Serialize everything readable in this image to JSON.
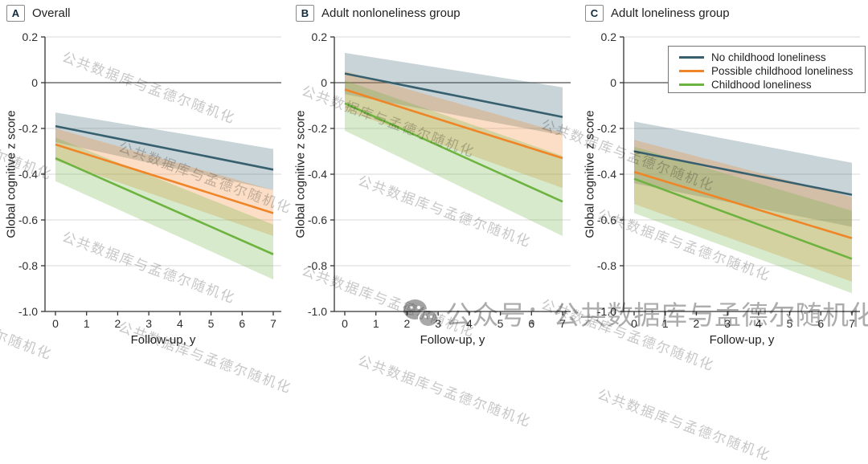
{
  "figure": {
    "watermark_tile_text": "公共数据库与孟德尔随机化",
    "bottom_watermark_text": "公众号：公共数据库与孟德尔随机化"
  },
  "colors": {
    "axis": "#333333",
    "zero_line": "#4f4f4f",
    "grid": "#d9d9d9",
    "band_opacity": 0.27,
    "no_childhood_loneliness": "#37606E",
    "possible_childhood_loneliness": "#EF8527",
    "childhood_loneliness": "#6DB33F",
    "watermark": "#c7c7c7"
  },
  "legend": {
    "items": [
      {
        "label": "No childhood loneliness",
        "color": "#37606E"
      },
      {
        "label": "Possible childhood loneliness",
        "color": "#EF8527"
      },
      {
        "label": "Childhood loneliness",
        "color": "#6DB33F"
      }
    ]
  },
  "axes": {
    "ylabel": "Global cognitive z score",
    "xlabel": "Follow-up, y",
    "yticks": [
      "0.2",
      "0",
      "-0.2",
      "-0.4",
      "-0.6",
      "-0.8",
      "-1.0"
    ],
    "ytick_values": [
      0.2,
      0,
      -0.2,
      -0.4,
      -0.6,
      -0.8,
      -1.0
    ],
    "xticks": [
      0,
      1,
      2,
      3,
      4,
      5,
      6,
      7
    ],
    "ylim": [
      -1.0,
      0.2
    ],
    "xlim": [
      0,
      7
    ],
    "grid": true,
    "legend_position": "top-right-panel-C"
  },
  "chart_data": [
    {
      "panel_label": "A",
      "title": "Overall",
      "type": "line",
      "x": [
        0,
        7
      ],
      "xlabel": "Follow-up, y",
      "ylabel": "Global cognitive z score",
      "ylim": [
        -1.0,
        0.2
      ],
      "series": [
        {
          "name": "No childhood loneliness",
          "color": "#37606E",
          "y": [
            -0.19,
            -0.38
          ],
          "band_upper": [
            -0.13,
            -0.29
          ],
          "band_lower": [
            -0.26,
            -0.47
          ]
        },
        {
          "name": "Possible childhood loneliness",
          "color": "#EF8527",
          "y": [
            -0.27,
            -0.57
          ],
          "band_upper": [
            -0.2,
            -0.47
          ],
          "band_lower": [
            -0.34,
            -0.67
          ]
        },
        {
          "name": "Childhood loneliness",
          "color": "#6DB33F",
          "y": [
            -0.33,
            -0.75
          ],
          "band_upper": [
            -0.24,
            -0.62
          ],
          "band_lower": [
            -0.43,
            -0.86
          ]
        }
      ]
    },
    {
      "panel_label": "B",
      "title": "Adult nonloneliness group",
      "type": "line",
      "x": [
        0,
        7
      ],
      "xlabel": "Follow-up, y",
      "ylabel": "Global cognitive z score",
      "ylim": [
        -1.0,
        0.2
      ],
      "series": [
        {
          "name": "No childhood loneliness",
          "color": "#37606E",
          "y": [
            0.04,
            -0.15
          ],
          "band_upper": [
            0.13,
            -0.02
          ],
          "band_lower": [
            -0.05,
            -0.23
          ]
        },
        {
          "name": "Possible childhood loneliness",
          "color": "#EF8527",
          "y": [
            -0.03,
            -0.33
          ],
          "band_upper": [
            0.05,
            -0.22
          ],
          "band_lower": [
            -0.12,
            -0.46
          ]
        },
        {
          "name": "Childhood loneliness",
          "color": "#6DB33F",
          "y": [
            -0.09,
            -0.52
          ],
          "band_upper": [
            0.01,
            -0.32
          ],
          "band_lower": [
            -0.21,
            -0.67
          ]
        }
      ]
    },
    {
      "panel_label": "C",
      "title": "Adult loneliness group",
      "type": "line",
      "x": [
        0,
        7
      ],
      "xlabel": "Follow-up, y",
      "ylabel": "Global cognitive z score",
      "ylim": [
        -1.0,
        0.2
      ],
      "series": [
        {
          "name": "No childhood loneliness",
          "color": "#37606E",
          "y": [
            -0.3,
            -0.49
          ],
          "band_upper": [
            -0.17,
            -0.35
          ],
          "band_lower": [
            -0.44,
            -0.63
          ]
        },
        {
          "name": "Possible childhood loneliness",
          "color": "#EF8527",
          "y": [
            -0.39,
            -0.68
          ],
          "band_upper": [
            -0.25,
            -0.5
          ],
          "band_lower": [
            -0.53,
            -0.87
          ]
        },
        {
          "name": "Childhood loneliness",
          "color": "#6DB33F",
          "y": [
            -0.42,
            -0.77
          ],
          "band_upper": [
            -0.28,
            -0.56
          ],
          "band_lower": [
            -0.57,
            -0.92
          ]
        }
      ]
    }
  ]
}
